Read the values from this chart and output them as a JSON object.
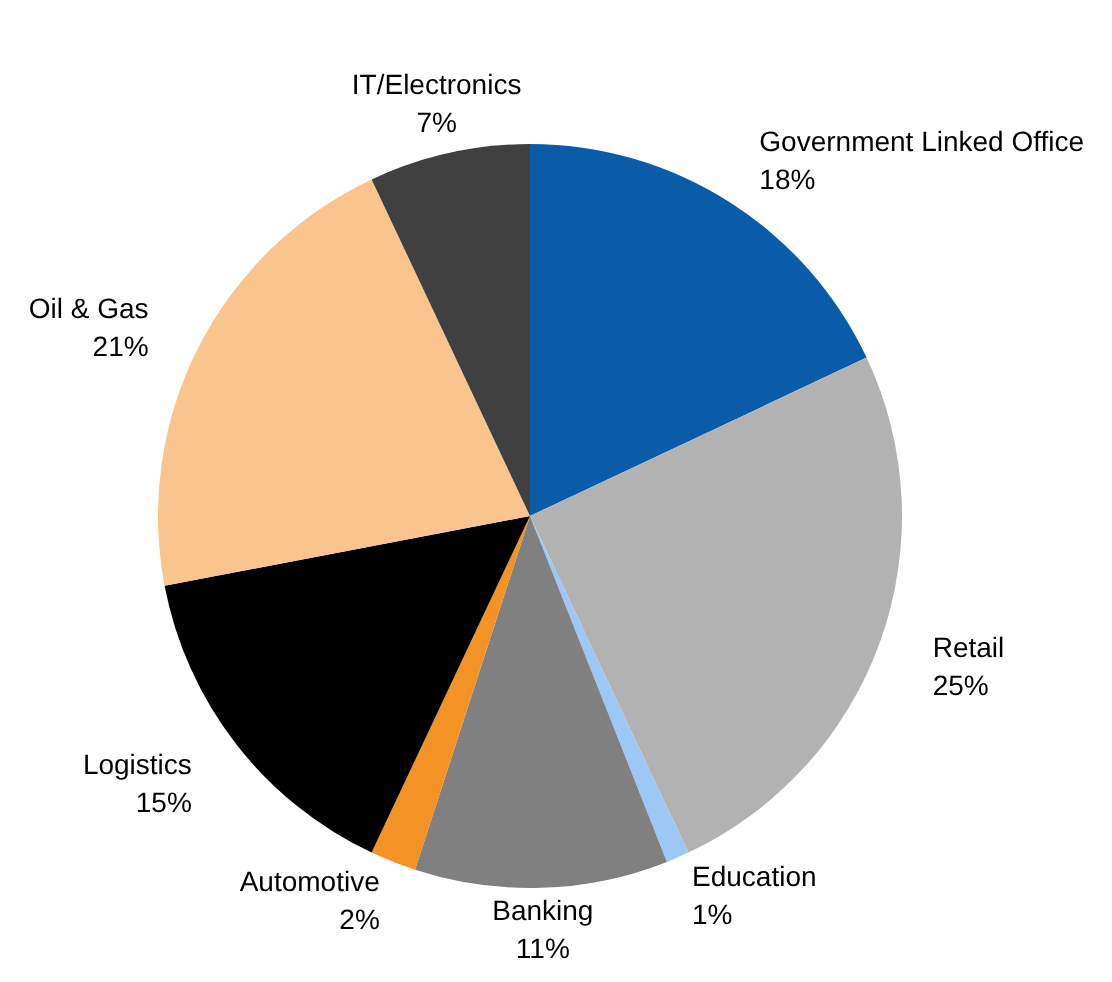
{
  "chart_data": {
    "type": "pie",
    "categories": [
      "Government Linked Office",
      "Retail",
      "Education",
      "Banking",
      "Automotive",
      "Logistics",
      "Oil & Gas",
      "IT/Electronics"
    ],
    "values": [
      18,
      25,
      1,
      11,
      2,
      15,
      21,
      7
    ],
    "value_labels": [
      "18%",
      "25%",
      "1%",
      "11%",
      "2%",
      "15%",
      "21%",
      "7%"
    ],
    "colors": [
      "#0a5ca8",
      "#b2b2b2",
      "#9dc8f5",
      "#808080",
      "#f39325",
      "#000000",
      "#f9c48e",
      "#404040"
    ],
    "legend": false
  }
}
